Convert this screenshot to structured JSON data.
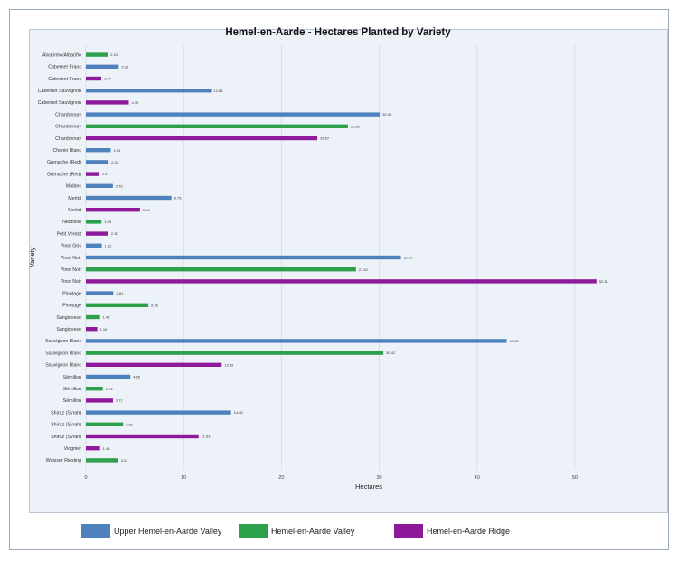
{
  "chart_data": {
    "type": "bar",
    "orientation": "horizontal",
    "title": "Hemel-en-Aarde - Hectares Planted by Variety",
    "xlabel": "Hectares",
    "ylabel": "Variety",
    "xlim": [
      0,
      55
    ],
    "xticks": [
      0,
      10,
      20,
      30,
      40,
      50
    ],
    "grid": "vertical",
    "legend_position": "bottom",
    "series_colors": {
      "Upper Hemel-en-Aarde Valley": "#4f81bd",
      "Hemel-en-Aarde Valley": "#2ca04a",
      "Hemel-en-Aarde Ridge": "#8e1a9b"
    },
    "legend": [
      "Upper Hemel-en-Aarde Valley",
      "Hemel-en-Aarde Valley",
      "Hemel-en-Aarde Ridge"
    ],
    "bars": [
      {
        "label": "Alvarinho/Albariño",
        "series": "Hemel-en-Aarde Valley",
        "value": 2.23,
        "text": "2.23"
      },
      {
        "label": "Cabernet Franc",
        "series": "Upper Hemel-en-Aarde Valley",
        "value": 3.36,
        "text": "3.36"
      },
      {
        "label": "Cabernet Franc",
        "series": "Hemel-en-Aarde Ridge",
        "value": 1.57,
        "text": "1.57"
      },
      {
        "label": "Cabernet Sauvignon",
        "series": "Upper Hemel-en-Aarde Valley",
        "value": 12.81,
        "text": "12.81"
      },
      {
        "label": "Cabernet Sauvignon",
        "series": "Hemel-en-Aarde Ridge",
        "value": 4.39,
        "text": "4.39"
      },
      {
        "label": "Chardonnay",
        "series": "Upper Hemel-en-Aarde Valley",
        "value": 30.05,
        "text": "30.05"
      },
      {
        "label": "Chardonnay",
        "series": "Hemel-en-Aarde Valley",
        "value": 26.8,
        "text": "26.80"
      },
      {
        "label": "Chardonnay",
        "series": "Hemel-en-Aarde Ridge",
        "value": 23.67,
        "text": "23.67"
      },
      {
        "label": "Chenin Blanc",
        "series": "Upper Hemel-en-Aarde Valley",
        "value": 2.54,
        "text": "2.54"
      },
      {
        "label": "Grenache (Red)",
        "series": "Upper Hemel-en-Aarde Valley",
        "value": 2.32,
        "text": "2.32"
      },
      {
        "label": "Grenache (Red)",
        "series": "Hemel-en-Aarde Ridge",
        "value": 1.37,
        "text": "1.37"
      },
      {
        "label": "Malbec",
        "series": "Upper Hemel-en-Aarde Valley",
        "value": 2.76,
        "text": "2.76"
      },
      {
        "label": "Merlot",
        "series": "Upper Hemel-en-Aarde Valley",
        "value": 8.75,
        "text": "8.75"
      },
      {
        "label": "Merlot",
        "series": "Hemel-en-Aarde Ridge",
        "value": 5.53,
        "text": "5.53"
      },
      {
        "label": "Nebbiolo",
        "series": "Hemel-en-Aarde Valley",
        "value": 1.59,
        "text": "1.59"
      },
      {
        "label": "Petit Verdot",
        "series": "Hemel-en-Aarde Ridge",
        "value": 2.3,
        "text": "2.30"
      },
      {
        "label": "Pinot Gris",
        "series": "Upper Hemel-en-Aarde Valley",
        "value": 1.62,
        "text": "1.62"
      },
      {
        "label": "Pinot Noir",
        "series": "Upper Hemel-en-Aarde Valley",
        "value": 32.22,
        "text": "32.22"
      },
      {
        "label": "Pinot Noir",
        "series": "Hemel-en-Aarde Valley",
        "value": 27.62,
        "text": "27.62"
      },
      {
        "label": "Pinot Noir",
        "series": "Hemel-en-Aarde Ridge",
        "value": 52.21,
        "text": "52.21"
      },
      {
        "label": "Pinotage",
        "series": "Upper Hemel-en-Aarde Valley",
        "value": 2.81,
        "text": "2.81"
      },
      {
        "label": "Pinotage",
        "series": "Hemel-en-Aarde Valley",
        "value": 6.39,
        "text": "6.39"
      },
      {
        "label": "Sangiovese",
        "series": "Hemel-en-Aarde Valley",
        "value": 1.45,
        "text": "1.45"
      },
      {
        "label": "Sangiovese",
        "series": "Hemel-en-Aarde Ridge",
        "value": 1.16,
        "text": "1.16"
      },
      {
        "label": "Sauvignon Blanc",
        "series": "Upper Hemel-en-Aarde Valley",
        "value": 43.03,
        "text": "43.03"
      },
      {
        "label": "Sauvignon Blanc",
        "series": "Hemel-en-Aarde Valley",
        "value": 30.42,
        "text": "30.42"
      },
      {
        "label": "Sauvignon Blanc",
        "series": "Hemel-en-Aarde Ridge",
        "value": 13.89,
        "text": "13.89"
      },
      {
        "label": "Sémillon",
        "series": "Upper Hemel-en-Aarde Valley",
        "value": 4.55,
        "text": "4.55"
      },
      {
        "label": "Sémillon",
        "series": "Hemel-en-Aarde Valley",
        "value": 1.73,
        "text": "1.73"
      },
      {
        "label": "Sémillon",
        "series": "Hemel-en-Aarde Ridge",
        "value": 2.77,
        "text": "2.77"
      },
      {
        "label": "Shiraz (Syrah)",
        "series": "Upper Hemel-en-Aarde Valley",
        "value": 14.85,
        "text": "14.85"
      },
      {
        "label": "Shiraz (Syrah)",
        "series": "Hemel-en-Aarde Valley",
        "value": 3.81,
        "text": "3.81"
      },
      {
        "label": "Shiraz (Syrah)",
        "series": "Hemel-en-Aarde Ridge",
        "value": 11.53,
        "text": "11.53"
      },
      {
        "label": "Viognier",
        "series": "Hemel-en-Aarde Ridge",
        "value": 1.45,
        "text": "1.45"
      },
      {
        "label": "Weisser Riesling",
        "series": "Hemel-en-Aarde Valley",
        "value": 3.31,
        "text": "3.31"
      }
    ]
  }
}
